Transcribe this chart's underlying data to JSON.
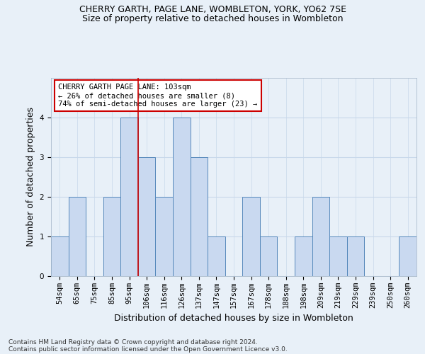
{
  "title": "CHERRY GARTH, PAGE LANE, WOMBLETON, YORK, YO62 7SE",
  "subtitle": "Size of property relative to detached houses in Wombleton",
  "xlabel": "Distribution of detached houses by size in Wombleton",
  "ylabel": "Number of detached properties",
  "bins": [
    "54sqm",
    "65sqm",
    "75sqm",
    "85sqm",
    "95sqm",
    "106sqm",
    "116sqm",
    "126sqm",
    "137sqm",
    "147sqm",
    "157sqm",
    "167sqm",
    "178sqm",
    "188sqm",
    "198sqm",
    "209sqm",
    "219sqm",
    "229sqm",
    "239sqm",
    "250sqm",
    "260sqm"
  ],
  "values": [
    1,
    2,
    0,
    2,
    4,
    3,
    2,
    4,
    3,
    1,
    0,
    2,
    1,
    0,
    1,
    2,
    1,
    1,
    0,
    0,
    1
  ],
  "bar_color": "#c9d9f0",
  "bar_edge_color": "#5588bb",
  "subject_line_color": "#cc0000",
  "annotation_text_line1": "CHERRY GARTH PAGE LANE: 103sqm",
  "annotation_text_line2": "← 26% of detached houses are smaller (8)",
  "annotation_text_line3": "74% of semi-detached houses are larger (23) →",
  "annotation_box_facecolor": "#ffffff",
  "annotation_box_edgecolor": "#cc0000",
  "grid_color": "#c8d8ea",
  "background_color": "#e8f0f8",
  "footnote_line1": "Contains HM Land Registry data © Crown copyright and database right 2024.",
  "footnote_line2": "Contains public sector information licensed under the Open Government Licence v3.0.",
  "ylim": [
    0,
    5
  ],
  "yticks": [
    0,
    1,
    2,
    3,
    4
  ],
  "subject_vline_x": 4.5,
  "title_fontsize": 9,
  "subtitle_fontsize": 9,
  "axis_label_fontsize": 9,
  "tick_fontsize": 7.5,
  "annotation_fontsize": 7.5,
  "footnote_fontsize": 6.5
}
